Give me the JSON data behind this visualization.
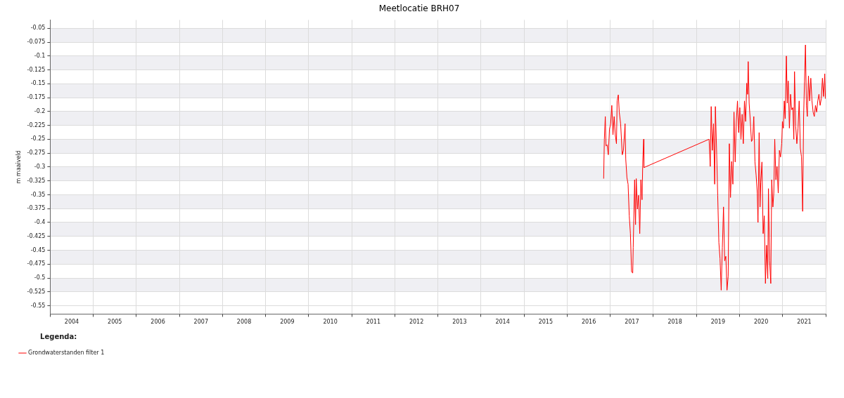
{
  "chart_data": {
    "type": "line",
    "title": "Meetlocatie BRH07",
    "ylabel": "m maaiveld",
    "legend_title": "Legenda:",
    "legend": "bottom left",
    "grid": true,
    "marker": "none",
    "line_style": "solid",
    "xlim": [
      2004,
      2022
    ],
    "xticks": [
      {
        "value": 2004,
        "label": null
      },
      {
        "value": 2004.5,
        "label": "2004"
      },
      {
        "value": 2005,
        "label": null
      },
      {
        "value": 2005.5,
        "label": "2005"
      },
      {
        "value": 2006,
        "label": null
      },
      {
        "value": 2006.5,
        "label": "2006"
      },
      {
        "value": 2007,
        "label": null
      },
      {
        "value": 2007.5,
        "label": "2007"
      },
      {
        "value": 2008,
        "label": null
      },
      {
        "value": 2008.5,
        "label": "2008"
      },
      {
        "value": 2009,
        "label": null
      },
      {
        "value": 2009.5,
        "label": "2009"
      },
      {
        "value": 2010,
        "label": null
      },
      {
        "value": 2010.5,
        "label": "2010"
      },
      {
        "value": 2011,
        "label": null
      },
      {
        "value": 2011.5,
        "label": "2011"
      },
      {
        "value": 2012,
        "label": null
      },
      {
        "value": 2012.5,
        "label": "2012"
      },
      {
        "value": 2013,
        "label": null
      },
      {
        "value": 2013.5,
        "label": "2013"
      },
      {
        "value": 2014,
        "label": null
      },
      {
        "value": 2014.5,
        "label": "2014"
      },
      {
        "value": 2015,
        "label": null
      },
      {
        "value": 2015.5,
        "label": "2015"
      },
      {
        "value": 2016,
        "label": null
      },
      {
        "value": 2016.5,
        "label": "2016"
      },
      {
        "value": 2017,
        "label": null
      },
      {
        "value": 2017.5,
        "label": "2017"
      },
      {
        "value": 2018,
        "label": null
      },
      {
        "value": 2018.5,
        "label": "2018"
      },
      {
        "value": 2019,
        "label": null
      },
      {
        "value": 2019.5,
        "label": "2019"
      },
      {
        "value": 2020,
        "label": null
      },
      {
        "value": 2020.5,
        "label": "2020"
      },
      {
        "value": 2021,
        "label": null
      },
      {
        "value": 2021.5,
        "label": "2021"
      },
      {
        "value": 2022,
        "label": null
      }
    ],
    "ylim": [
      -0.565,
      -0.035
    ],
    "yticks": [
      -0.55,
      -0.525,
      -0.5,
      -0.475,
      -0.45,
      -0.425,
      -0.4,
      -0.375,
      -0.35,
      -0.325,
      -0.3,
      -0.275,
      -0.25,
      -0.225,
      -0.2,
      -0.175,
      -0.15,
      -0.125,
      -0.1,
      -0.075,
      -0.05
    ],
    "x": [
      2016.846,
      2016.862,
      2016.884,
      2016.9,
      2016.927,
      2016.954,
      2016.981,
      2017.008,
      2017.035,
      2017.062,
      2017.089,
      2017.116,
      2017.143,
      2017.159,
      2017.186,
      2017.208,
      2017.24,
      2017.278,
      2017.305,
      2017.343,
      2017.359,
      2017.386,
      2017.413,
      2017.44,
      2017.467,
      2017.494,
      2017.521,
      2017.532,
      2017.565,
      2017.586,
      2017.602,
      2017.63,
      2017.656,
      2017.684,
      2017.71,
      2017.737,
      2017.754,
      2017.775,
      2017.781,
      2019.293,
      2019.32,
      2019.342,
      2019.369,
      2019.396,
      2019.423,
      2019.439,
      2019.466,
      2019.493,
      2019.52,
      2019.547,
      2019.574,
      2019.601,
      2019.628,
      2019.655,
      2019.682,
      2019.709,
      2019.736,
      2019.763,
      2019.79,
      2019.817,
      2019.845,
      2019.871,
      2019.898,
      2019.925,
      2019.952,
      2019.979,
      2020.006,
      2020.033,
      2020.06,
      2020.087,
      2020.114,
      2020.141,
      2020.168,
      2020.185,
      2020.201,
      2020.223,
      2020.25,
      2020.277,
      2020.304,
      2020.331,
      2020.358,
      2020.385,
      2020.412,
      2020.428,
      2020.455,
      2020.476,
      2020.493,
      2020.52,
      2020.547,
      2020.574,
      2020.601,
      2020.628,
      2020.655,
      2020.671,
      2020.698,
      2020.725,
      2020.747,
      2020.774,
      2020.795,
      2020.817,
      2020.844,
      2020.871,
      2020.898,
      2020.925,
      2020.952,
      2020.979,
      2020.995,
      2021.017,
      2021.038,
      2021.06,
      2021.087,
      2021.108,
      2021.13,
      2021.157,
      2021.184,
      2021.211,
      2021.238,
      2021.26,
      2021.276,
      2021.303,
      2021.33,
      2021.357,
      2021.384,
      2021.411,
      2021.438,
      2021.465,
      2021.487,
      2021.508,
      2021.53,
      2021.552,
      2021.573,
      2021.6,
      2021.627,
      2021.654,
      2021.681,
      2021.708,
      2021.735,
      2021.762,
      2021.789,
      2021.816,
      2021.843,
      2021.87,
      2021.897,
      2021.924,
      2021.951,
      2021.978,
      2021.995
    ],
    "series": [
      {
        "name": "Grondwaterstanden filter 1",
        "color": "#ff0000",
        "values": [
          -0.321,
          -0.25,
          -0.209,
          -0.262,
          -0.26,
          -0.278,
          -0.232,
          -0.222,
          -0.189,
          -0.242,
          -0.209,
          -0.242,
          -0.258,
          -0.181,
          -0.17,
          -0.201,
          -0.222,
          -0.278,
          -0.27,
          -0.222,
          -0.286,
          -0.319,
          -0.331,
          -0.388,
          -0.42,
          -0.489,
          -0.491,
          -0.445,
          -0.323,
          -0.404,
          -0.321,
          -0.376,
          -0.351,
          -0.42,
          -0.323,
          -0.359,
          -0.29,
          -0.25,
          -0.301,
          -0.25,
          -0.299,
          -0.191,
          -0.27,
          -0.222,
          -0.331,
          -0.191,
          -0.266,
          -0.351,
          -0.436,
          -0.465,
          -0.522,
          -0.445,
          -0.372,
          -0.469,
          -0.461,
          -0.522,
          -0.497,
          -0.258,
          -0.355,
          -0.29,
          -0.331,
          -0.201,
          -0.291,
          -0.218,
          -0.181,
          -0.238,
          -0.193,
          -0.25,
          -0.205,
          -0.258,
          -0.181,
          -0.218,
          -0.149,
          -0.169,
          -0.11,
          -0.185,
          -0.218,
          -0.254,
          -0.25,
          -0.209,
          -0.291,
          -0.315,
          -0.347,
          -0.4,
          -0.238,
          -0.372,
          -0.327,
          -0.291,
          -0.42,
          -0.388,
          -0.51,
          -0.441,
          -0.501,
          -0.339,
          -0.469,
          -0.51,
          -0.323,
          -0.372,
          -0.347,
          -0.25,
          -0.323,
          -0.299,
          -0.347,
          -0.27,
          -0.282,
          -0.258,
          -0.218,
          -0.23,
          -0.181,
          -0.213,
          -0.1,
          -0.185,
          -0.145,
          -0.23,
          -0.169,
          -0.197,
          -0.193,
          -0.25,
          -0.128,
          -0.226,
          -0.258,
          -0.23,
          -0.181,
          -0.266,
          -0.282,
          -0.38,
          -0.209,
          -0.145,
          -0.08,
          -0.189,
          -0.209,
          -0.136,
          -0.181,
          -0.14,
          -0.181,
          -0.201,
          -0.209,
          -0.189,
          -0.201,
          -0.181,
          -0.169,
          -0.189,
          -0.177,
          -0.14,
          -0.173,
          -0.132,
          -0.177
        ]
      }
    ]
  }
}
